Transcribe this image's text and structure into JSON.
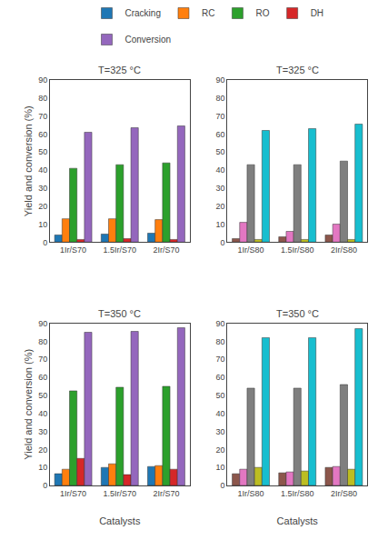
{
  "chart_data": [
    {
      "type": "bar",
      "title": "T=325 °C",
      "categories": [
        "1Ir/S70",
        "1.5Ir/S70",
        "2Ir/S70"
      ],
      "series": [
        {
          "name": "Cracking",
          "values": [
            4.0,
            4.5,
            5.0
          ]
        },
        {
          "name": "RC",
          "values": [
            13.0,
            13.0,
            12.5
          ]
        },
        {
          "name": "RO",
          "values": [
            41.0,
            43.0,
            44.0
          ]
        },
        {
          "name": "DH",
          "values": [
            1.5,
            2.0,
            1.5
          ]
        },
        {
          "name": "Conversion",
          "values": [
            61.0,
            63.5,
            64.5
          ]
        }
      ],
      "ylabel": "Yield and conversion (%)",
      "ylim": [
        0,
        90
      ],
      "yticks": [
        0,
        10,
        20,
        30,
        40,
        50,
        60,
        70,
        80,
        90
      ],
      "grid": false,
      "legend": "top"
    },
    {
      "type": "bar",
      "title": "T=325 °C",
      "categories": [
        "1Ir/S80",
        "1.5Ir/S80",
        "2Ir/S80"
      ],
      "series": [
        {
          "name": "Cracking",
          "values": [
            2.0,
            3.0,
            4.0
          ]
        },
        {
          "name": "RC",
          "values": [
            11.0,
            6.0,
            10.0
          ]
        },
        {
          "name": "RO",
          "values": [
            43.0,
            43.0,
            45.0
          ]
        },
        {
          "name": "DH",
          "values": [
            1.5,
            1.5,
            1.5
          ]
        },
        {
          "name": "Conversion",
          "values": [
            62.0,
            63.0,
            65.5
          ]
        }
      ],
      "ylim": [
        0,
        90
      ],
      "yticks": [
        0,
        10,
        20,
        30,
        40,
        50,
        60,
        70,
        80,
        90
      ],
      "grid": false
    },
    {
      "type": "bar",
      "title": "T=350 °C",
      "categories": [
        "1Ir/S70",
        "1.5Ir/S70",
        "2Ir/S70"
      ],
      "series": [
        {
          "name": "Cracking",
          "values": [
            6.5,
            10.0,
            10.5
          ]
        },
        {
          "name": "RC",
          "values": [
            9.0,
            12.0,
            11.0
          ]
        },
        {
          "name": "RO",
          "values": [
            52.5,
            54.5,
            55.0
          ]
        },
        {
          "name": "DH",
          "values": [
            15.0,
            6.0,
            9.0
          ]
        },
        {
          "name": "Conversion",
          "values": [
            85.0,
            85.5,
            87.5
          ]
        }
      ],
      "xlabel": "Catalysts",
      "ylabel": "Yield and conversion (%)",
      "ylim": [
        0,
        90
      ],
      "yticks": [
        0,
        10,
        20,
        30,
        40,
        50,
        60,
        70,
        80,
        90
      ],
      "grid": false
    },
    {
      "type": "bar",
      "title": "T=350 °C",
      "categories": [
        "1Ir/S80",
        "1.5Ir/S80",
        "2Ir/S80"
      ],
      "series": [
        {
          "name": "Cracking",
          "values": [
            6.5,
            7.0,
            10.0
          ]
        },
        {
          "name": "RC",
          "values": [
            9.0,
            7.5,
            10.5
          ]
        },
        {
          "name": "RO",
          "values": [
            54.0,
            54.0,
            56.0
          ]
        },
        {
          "name": "DH",
          "values": [
            10.0,
            8.0,
            9.0
          ]
        },
        {
          "name": "Conversion",
          "values": [
            82.0,
            82.0,
            87.0
          ]
        }
      ],
      "xlabel": "Catalysts",
      "ylim": [
        0,
        90
      ],
      "yticks": [
        0,
        10,
        20,
        30,
        40,
        50,
        60,
        70,
        80,
        90
      ],
      "grid": false
    }
  ]
}
